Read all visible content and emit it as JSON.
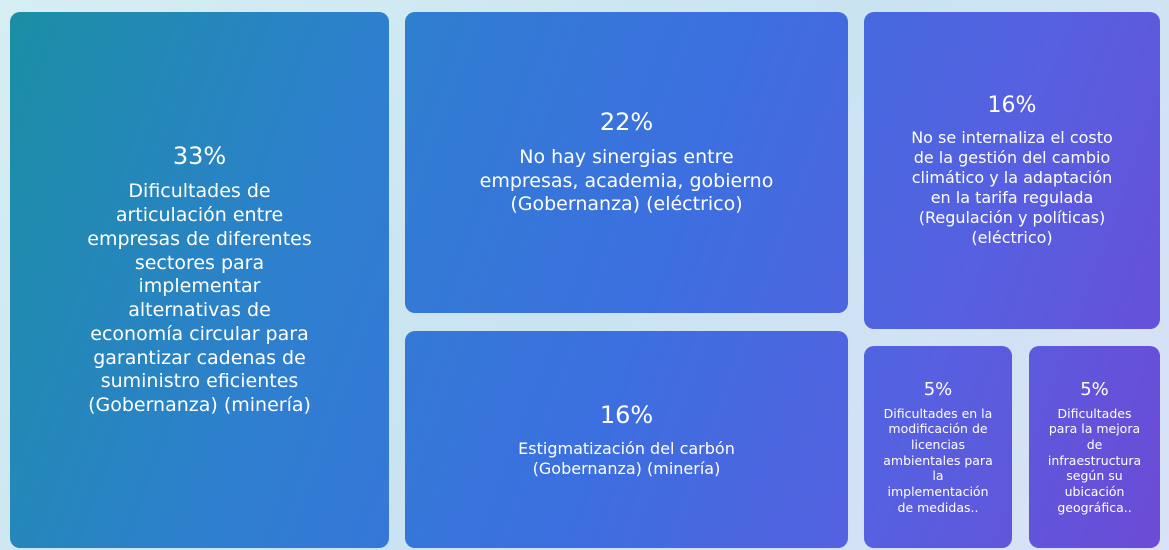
{
  "chart_data": {
    "type": "treemap",
    "categories": [
      "Dificultades de articulación entre empresas de diferentes sectores para implementar alternativas de economía circular para garantizar cadenas de suministro eficientes (Gobernanza) (minería)",
      "No hay sinergias entre empresas, academia, gobierno (Gobernanza) (eléctrico)",
      "Estigmatización del carbón (Gobernanza) (minería)",
      "No se internaliza el costo de la gestión del cambio climático y la adaptación en la tarifa regulada (Regulación y políticas) (eléctrico)",
      "Dificultades en la modificación de licencias ambientales para la implementación de medidas..",
      "Dificultades para la mejora de infraestructura según su ubicación geográfica.."
    ],
    "values": [
      33,
      22,
      16,
      16,
      5,
      5
    ],
    "value_labels": [
      "33%",
      "22%",
      "16%",
      "16%",
      "5%",
      "5%"
    ]
  }
}
